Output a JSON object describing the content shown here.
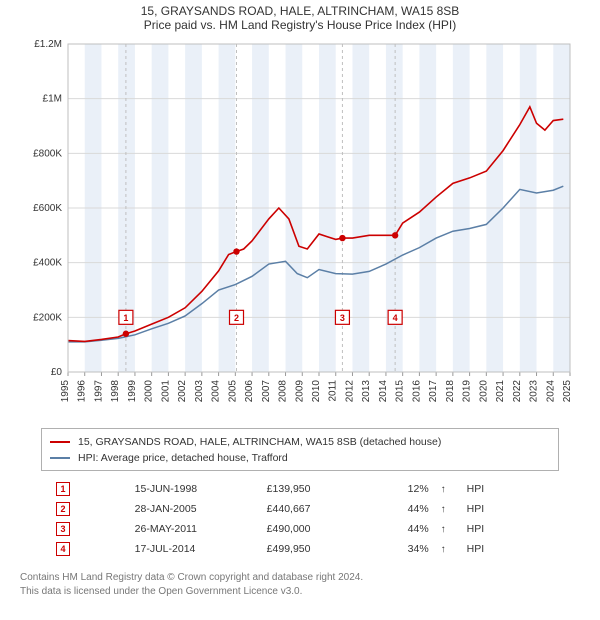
{
  "titles": {
    "line1": "15, GRAYSANDS ROAD, HALE, ALTRINCHAM, WA15 8SB",
    "line2": "Price paid vs. HM Land Registry's House Price Index (HPI)"
  },
  "chart": {
    "type": "line",
    "background_color": "#ffffff",
    "x_domain": [
      1995,
      2025
    ],
    "y_domain": [
      0,
      1200000
    ],
    "x_ticks": [
      1995,
      1996,
      1997,
      1998,
      1999,
      2000,
      2001,
      2002,
      2003,
      2004,
      2005,
      2006,
      2007,
      2008,
      2009,
      2010,
      2011,
      2012,
      2013,
      2014,
      2015,
      2016,
      2017,
      2018,
      2019,
      2020,
      2021,
      2022,
      2023,
      2024,
      2025
    ],
    "x_tick_rotate": -90,
    "y_ticks": [
      {
        "v": 0,
        "label": "£0"
      },
      {
        "v": 200000,
        "label": "£200K"
      },
      {
        "v": 400000,
        "label": "£400K"
      },
      {
        "v": 600000,
        "label": "£600K"
      },
      {
        "v": 800000,
        "label": "£800K"
      },
      {
        "v": 1000000,
        "label": "£1M"
      },
      {
        "v": 1200000,
        "label": "£1.2M"
      }
    ],
    "grid_color": "#d9d9d9",
    "band_color": "#eaf0f8",
    "band_years": [
      1996,
      1998,
      2000,
      2002,
      2004,
      2006,
      2008,
      2010,
      2012,
      2014,
      2016,
      2018,
      2020,
      2022,
      2024
    ],
    "series": {
      "price_paid": {
        "color": "#cc0000",
        "width": 1.6,
        "points": [
          [
            1995.0,
            115000
          ],
          [
            1996.0,
            112000
          ],
          [
            1997.0,
            119000
          ],
          [
            1998.0,
            128000
          ],
          [
            1998.46,
            139950
          ],
          [
            1999.0,
            150000
          ],
          [
            2000.0,
            175000
          ],
          [
            2001.0,
            200000
          ],
          [
            2002.0,
            235000
          ],
          [
            2003.0,
            295000
          ],
          [
            2004.0,
            370000
          ],
          [
            2004.6,
            430000
          ],
          [
            2005.07,
            440667
          ],
          [
            2005.5,
            450000
          ],
          [
            2006.0,
            480000
          ],
          [
            2007.0,
            560000
          ],
          [
            2007.6,
            600000
          ],
          [
            2008.2,
            560000
          ],
          [
            2008.8,
            460000
          ],
          [
            2009.3,
            450000
          ],
          [
            2010.0,
            505000
          ],
          [
            2010.5,
            495000
          ],
          [
            2011.0,
            485000
          ],
          [
            2011.4,
            490000
          ],
          [
            2012.0,
            490000
          ],
          [
            2013.0,
            500000
          ],
          [
            2013.6,
            500000
          ],
          [
            2014.0,
            500000
          ],
          [
            2014.55,
            499950
          ],
          [
            2015.0,
            545000
          ],
          [
            2016.0,
            585000
          ],
          [
            2017.0,
            640000
          ],
          [
            2018.0,
            690000
          ],
          [
            2019.0,
            710000
          ],
          [
            2020.0,
            735000
          ],
          [
            2021.0,
            810000
          ],
          [
            2022.0,
            905000
          ],
          [
            2022.6,
            970000
          ],
          [
            2023.0,
            910000
          ],
          [
            2023.5,
            885000
          ],
          [
            2024.0,
            920000
          ],
          [
            2024.6,
            925000
          ]
        ]
      },
      "hpi": {
        "color": "#5b7fa6",
        "width": 1.5,
        "points": [
          [
            1995.0,
            110000
          ],
          [
            1996.0,
            110000
          ],
          [
            1997.0,
            116000
          ],
          [
            1998.0,
            123000
          ],
          [
            1999.0,
            136000
          ],
          [
            2000.0,
            158000
          ],
          [
            2001.0,
            178000
          ],
          [
            2002.0,
            205000
          ],
          [
            2003.0,
            250000
          ],
          [
            2004.0,
            300000
          ],
          [
            2005.0,
            320000
          ],
          [
            2006.0,
            350000
          ],
          [
            2007.0,
            395000
          ],
          [
            2008.0,
            405000
          ],
          [
            2008.7,
            360000
          ],
          [
            2009.3,
            345000
          ],
          [
            2010.0,
            375000
          ],
          [
            2011.0,
            360000
          ],
          [
            2012.0,
            358000
          ],
          [
            2013.0,
            368000
          ],
          [
            2014.0,
            395000
          ],
          [
            2015.0,
            428000
          ],
          [
            2016.0,
            455000
          ],
          [
            2017.0,
            490000
          ],
          [
            2018.0,
            515000
          ],
          [
            2019.0,
            525000
          ],
          [
            2020.0,
            540000
          ],
          [
            2021.0,
            600000
          ],
          [
            2022.0,
            668000
          ],
          [
            2023.0,
            655000
          ],
          [
            2024.0,
            665000
          ],
          [
            2024.6,
            680000
          ]
        ]
      }
    },
    "markers": [
      {
        "n": "1",
        "year": 1998.46,
        "y": 200000,
        "color": "#cc0000"
      },
      {
        "n": "2",
        "year": 2005.07,
        "y": 200000,
        "color": "#cc0000"
      },
      {
        "n": "3",
        "year": 2011.4,
        "y": 200000,
        "color": "#cc0000"
      },
      {
        "n": "4",
        "year": 2014.55,
        "y": 200000,
        "color": "#cc0000"
      }
    ],
    "sale_points_color": "#cc0000"
  },
  "legend": [
    {
      "color": "#cc0000",
      "label": "15, GRAYSANDS ROAD, HALE, ALTRINCHAM, WA15 8SB (detached house)"
    },
    {
      "color": "#5b7fa6",
      "label": "HPI: Average price, detached house, Trafford"
    }
  ],
  "transactions": [
    {
      "n": "1",
      "date": "15-JUN-1998",
      "price": "£139,950",
      "pct": "12%",
      "arrow": "↑",
      "cmp": "HPI",
      "color": "#cc0000"
    },
    {
      "n": "2",
      "date": "28-JAN-2005",
      "price": "£440,667",
      "pct": "44%",
      "arrow": "↑",
      "cmp": "HPI",
      "color": "#cc0000"
    },
    {
      "n": "3",
      "date": "26-MAY-2011",
      "price": "£490,000",
      "pct": "44%",
      "arrow": "↑",
      "cmp": "HPI",
      "color": "#cc0000"
    },
    {
      "n": "4",
      "date": "17-JUL-2014",
      "price": "£499,950",
      "pct": "34%",
      "arrow": "↑",
      "cmp": "HPI",
      "color": "#cc0000"
    }
  ],
  "footer": {
    "line1": "Contains HM Land Registry data © Crown copyright and database right 2024.",
    "line2": "This data is licensed under the Open Government Licence v3.0."
  }
}
